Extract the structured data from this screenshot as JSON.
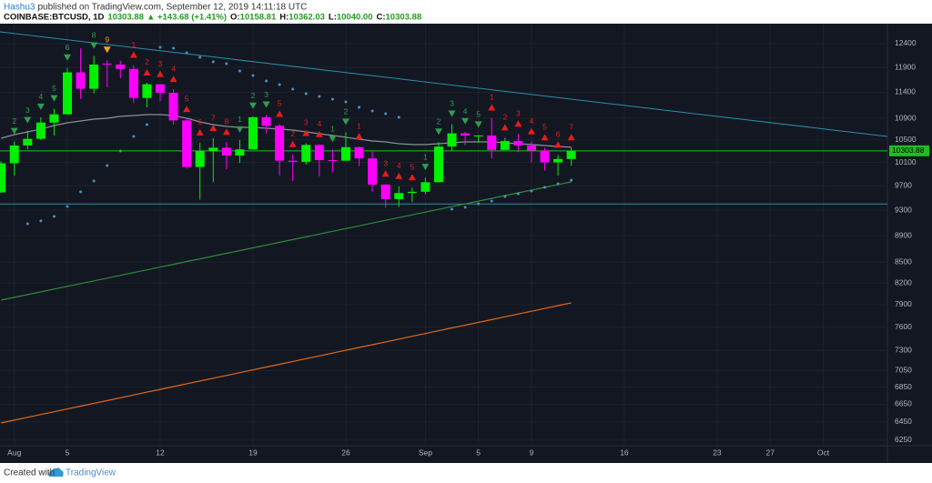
{
  "header": {
    "author": "Hashu3",
    "published": "published on TradingView.com, September 12, 2019 14:11:18 UTC",
    "symbol": "COINBASE:BTCUSD, 1D",
    "change": "▲ +143.68 (+1.41%)",
    "ohlc": [
      {
        "label": "O:",
        "value": "10158.81"
      },
      {
        "label": "H:",
        "value": "10362.03"
      },
      {
        "label": "L:",
        "value": "10040.00"
      },
      {
        "label": "C:",
        "value": "10303.88"
      }
    ]
  },
  "footer": {
    "created": "Created with",
    "brand": "TradingView"
  },
  "chart_data": {
    "type": "candlestick",
    "log": true,
    "grid": true,
    "background": "#131722",
    "up_color": "#00f000",
    "down_color": "#ff00ff",
    "price_line_color": "#1fbf1f",
    "x": [
      0,
      1,
      2,
      3,
      4,
      5,
      6,
      7,
      8,
      9,
      10,
      11,
      12,
      13,
      14,
      15,
      16,
      17,
      18,
      19,
      20,
      21,
      22,
      23,
      24,
      25,
      26,
      27,
      28,
      29,
      30,
      31,
      32,
      33,
      34,
      35,
      36,
      37,
      38,
      39,
      40,
      41,
      42,
      43
    ],
    "open": [
      9590,
      10085,
      10400,
      10520,
      10820,
      10975,
      11800,
      11470,
      11980,
      11960,
      11870,
      11290,
      11560,
      11390,
      10860,
      10020,
      10300,
      10360,
      10220,
      10330,
      10920,
      10760,
      10130,
      10110,
      10410,
      10140,
      10130,
      10370,
      10170,
      9720,
      9480,
      9580,
      9600,
      9760,
      10380,
      10620,
      10580,
      10580,
      10320,
      10480,
      10400,
      10310,
      10100,
      10158.81
    ],
    "high": [
      10120,
      10470,
      10670,
      10920,
      11080,
      11890,
      12300,
      12140,
      12050,
      12040,
      11950,
      11590,
      11560,
      11460,
      10880,
      10450,
      10530,
      10460,
      10500,
      10940,
      10960,
      10790,
      10240,
      10440,
      10420,
      10330,
      10640,
      10380,
      10290,
      9730,
      9690,
      9670,
      9840,
      10460,
      10790,
      10650,
      10590,
      10910,
      10540,
      10610,
      10470,
      10360,
      10230,
      10362.03
    ],
    "low": [
      9580,
      9870,
      10330,
      10500,
      10580,
      10975,
      11270,
      11380,
      11500,
      11680,
      11190,
      11110,
      11230,
      10780,
      9990,
      9470,
      9760,
      9980,
      10090,
      10330,
      10620,
      9870,
      9780,
      10060,
      9860,
      9930,
      10130,
      10040,
      9600,
      9340,
      9350,
      9430,
      9560,
      9760,
      10300,
      10400,
      10450,
      10170,
      10320,
      10280,
      10100,
      9960,
      9870,
      10040
    ],
    "close": [
      10085,
      10400,
      10520,
      10820,
      10975,
      11800,
      11470,
      11960,
      11960,
      11870,
      11290,
      11560,
      11390,
      10860,
      10020,
      10300,
      10360,
      10220,
      10330,
      10920,
      10760,
      10130,
      10110,
      10410,
      10140,
      10130,
      10370,
      10170,
      9720,
      9480,
      9580,
      9600,
      9760,
      10380,
      10620,
      10580,
      10580,
      10320,
      10480,
      10400,
      10310,
      10100,
      10160,
      10303.88
    ],
    "series": [
      {
        "color": "#8c8f99",
        "values": [
          10531,
          10597,
          10647,
          10698,
          10765,
          10816,
          10850,
          10884,
          10901,
          10936,
          10953,
          10969,
          10969,
          10953,
          10901,
          10833,
          10782,
          10748,
          10731,
          10731,
          10714,
          10698,
          10681,
          10647,
          10613,
          10581,
          10548,
          10514,
          10481,
          10465,
          10432,
          10416,
          10416,
          10432,
          10448,
          10465,
          10465,
          10465,
          10448,
          10432,
          10416,
          10399,
          10383,
          10367
        ]
      },
      {
        "color": "#2e8b3a",
        "values": [
          7962,
          8000,
          8038,
          8076,
          8115,
          8153,
          8192,
          8231,
          8270,
          8310,
          8349,
          8389,
          8429,
          8469,
          8510,
          8550,
          8591,
          8632,
          8673,
          8714,
          8756,
          8797,
          8839,
          8881,
          8924,
          8966,
          9009,
          9052,
          9095,
          9138,
          9182,
          9225,
          9269,
          9313,
          9358,
          9402,
          9447,
          9492,
          9537,
          9583,
          9628,
          9674,
          9720,
          9766
        ]
      },
      {
        "color": "#e06a1b",
        "values": [
          6440,
          6471,
          6502,
          6534,
          6565,
          6597,
          6629,
          6661,
          6693,
          6726,
          6758,
          6791,
          6824,
          6857,
          6890,
          6923,
          6957,
          6990,
          7024,
          7058,
          7092,
          7126,
          7161,
          7196,
          7230,
          7265,
          7300,
          7336,
          7371,
          7407,
          7443,
          7479,
          7515,
          7551,
          7588,
          7624,
          7661,
          7698,
          7735,
          7773,
          7810,
          7848,
          7886,
          7924
        ]
      }
    ],
    "sar": {
      "color": "#4a90c8",
      "values": [
        null,
        null,
        9084,
        9128,
        9200,
        9360,
        9599,
        9781,
        10045,
        10302,
        10564,
        10782,
        12322,
        12303,
        12207,
        12111,
        12017,
        11978,
        11829,
        11737,
        11626,
        11553,
        11463,
        11373,
        11320,
        11267,
        11213,
        11108,
        11038,
        10986,
        10918,
        null,
        null,
        null,
        9316,
        9346,
        9404,
        9449,
        9523,
        9568,
        9613,
        9673,
        9735,
        9796
      ]
    },
    "trendlines": [
      {
        "color": "#2a8fa8",
        "values": [
          12656,
          10564
        ]
      },
      {
        "color": "#2a8fa8",
        "values": [
          9400,
          9400
        ]
      }
    ],
    "td_setup": [
      {
        "index": 1,
        "label": "2",
        "color": "#2e9e4f",
        "direction": "down"
      },
      {
        "index": 2,
        "label": "3",
        "color": "#2e9e4f",
        "direction": "down"
      },
      {
        "index": 3,
        "label": "4",
        "color": "#2e9e4f",
        "direction": "down"
      },
      {
        "index": 4,
        "label": "5",
        "color": "#2e9e4f",
        "direction": "down"
      },
      {
        "index": 5,
        "label": "6",
        "color": "#2e9e4f",
        "direction": "down"
      },
      {
        "index": 7,
        "label": "8",
        "color": "#2e9e4f",
        "direction": "down"
      },
      {
        "index": 8,
        "label": "9",
        "color": "#f7a21b",
        "direction": "down"
      },
      {
        "index": 10,
        "label": "1",
        "color": "#e81c1c",
        "direction": "up"
      },
      {
        "index": 11,
        "label": "2",
        "color": "#e81c1c",
        "direction": "up"
      },
      {
        "index": 12,
        "label": "3",
        "color": "#e81c1c",
        "direction": "up"
      },
      {
        "index": 13,
        "label": "4",
        "color": "#e81c1c",
        "direction": "up"
      },
      {
        "index": 14,
        "label": "5",
        "color": "#e81c1c",
        "direction": "up"
      },
      {
        "index": 15,
        "label": "6",
        "color": "#e81c1c",
        "direction": "up"
      },
      {
        "index": 16,
        "label": "7",
        "color": "#e81c1c",
        "direction": "up"
      },
      {
        "index": 17,
        "label": "8",
        "color": "#e81c1c",
        "direction": "up"
      },
      {
        "index": 18,
        "label": "1",
        "color": "#2e9e4f",
        "direction": "down"
      },
      {
        "index": 19,
        "label": "2",
        "color": "#2e9e4f",
        "direction": "down"
      },
      {
        "index": 20,
        "label": "3",
        "color": "#2e9e4f",
        "direction": "down"
      },
      {
        "index": 21,
        "label": "5",
        "color": "#e81c1c",
        "direction": "up"
      },
      {
        "index": 22,
        "label": "2",
        "color": "#e81c1c",
        "direction": "up"
      },
      {
        "index": 23,
        "label": "3",
        "color": "#e81c1c",
        "direction": "up"
      },
      {
        "index": 24,
        "label": "4",
        "color": "#e81c1c",
        "direction": "up"
      },
      {
        "index": 25,
        "label": "1",
        "color": "#2e9e4f",
        "direction": "down"
      },
      {
        "index": 26,
        "label": "2",
        "color": "#2e9e4f",
        "direction": "down"
      },
      {
        "index": 27,
        "label": "1",
        "color": "#e81c1c",
        "direction": "up"
      },
      {
        "index": 29,
        "label": "3",
        "color": "#e81c1c",
        "direction": "up"
      },
      {
        "index": 30,
        "label": "4",
        "color": "#e81c1c",
        "direction": "up"
      },
      {
        "index": 31,
        "label": "5",
        "color": "#e81c1c",
        "direction": "up"
      },
      {
        "index": 32,
        "label": "1",
        "color": "#2e9e4f",
        "direction": "down"
      },
      {
        "index": 33,
        "label": "2",
        "color": "#2e9e4f",
        "direction": "down"
      },
      {
        "index": 34,
        "label": "3",
        "color": "#2e9e4f",
        "direction": "down"
      },
      {
        "index": 35,
        "label": "4",
        "color": "#2e9e4f",
        "direction": "down"
      },
      {
        "index": 36,
        "label": "5",
        "color": "#2e9e4f",
        "direction": "down"
      },
      {
        "index": 37,
        "label": "1",
        "color": "#e81c1c",
        "direction": "up"
      },
      {
        "index": 38,
        "label": "2",
        "color": "#e81c1c",
        "direction": "up"
      },
      {
        "index": 39,
        "label": "3",
        "color": "#e81c1c",
        "direction": "up"
      },
      {
        "index": 40,
        "label": "4",
        "color": "#e81c1c",
        "direction": "up"
      },
      {
        "index": 41,
        "label": "5",
        "color": "#e81c1c",
        "direction": "up"
      },
      {
        "index": 42,
        "label": "6",
        "color": "#e81c1c",
        "direction": "up"
      },
      {
        "index": 43,
        "label": "7",
        "color": "#e81c1c",
        "direction": "up"
      }
    ],
    "xlim": [
      -0.08,
      66.84
    ],
    "xticks": [
      {
        "value": 1,
        "label": "Aug"
      },
      5,
      12,
      19,
      26,
      {
        "value": 32,
        "label": "Sep"
      },
      {
        "value": 36,
        "label": "5"
      },
      {
        "value": 40,
        "label": "9"
      },
      {
        "value": 47,
        "label": "16"
      },
      {
        "value": 54,
        "label": "23"
      },
      {
        "value": 58,
        "label": "27"
      },
      {
        "value": 62,
        "label": "Oct"
      }
    ],
    "ylim": [
      6191,
      12836
    ],
    "yticks": [
      12400,
      11900,
      11400,
      10900,
      10500,
      10100,
      9700,
      9300,
      8900,
      8500,
      8200,
      7900,
      7600,
      7300,
      7050,
      6850,
      6650,
      6450,
      6250
    ]
  }
}
